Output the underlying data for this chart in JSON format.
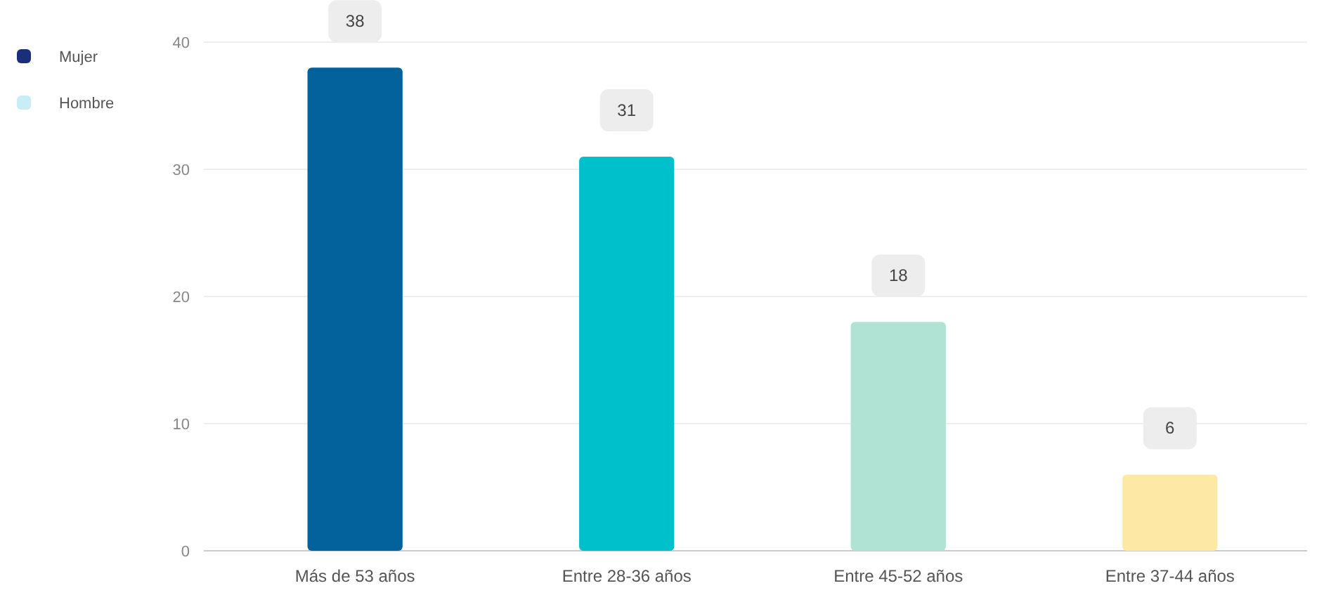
{
  "chart_data": {
    "type": "bar",
    "categories": [
      "Más de 53 años",
      "Entre 28-36 años",
      "Entre 45-52 años",
      "Entre 37-44 años"
    ],
    "series": [
      {
        "colors": [
          "#03629c",
          "#00c0cc",
          "#b0e3d3",
          "#fde8a6"
        ],
        "values": [
          38,
          31,
          18,
          6
        ]
      },
      {
        "name": "Mujer",
        "color": "#1a2f7a",
        "values": [
          null,
          null,
          null,
          null
        ]
      },
      {
        "name": "Hombre",
        "color": "#c8edf5",
        "values": [
          null,
          null,
          null,
          null
        ]
      }
    ],
    "ylim": [
      0,
      40
    ],
    "yticks": [
      0,
      10,
      20,
      30,
      40
    ],
    "grid": "y",
    "legend": "left",
    "data_labels": true
  }
}
